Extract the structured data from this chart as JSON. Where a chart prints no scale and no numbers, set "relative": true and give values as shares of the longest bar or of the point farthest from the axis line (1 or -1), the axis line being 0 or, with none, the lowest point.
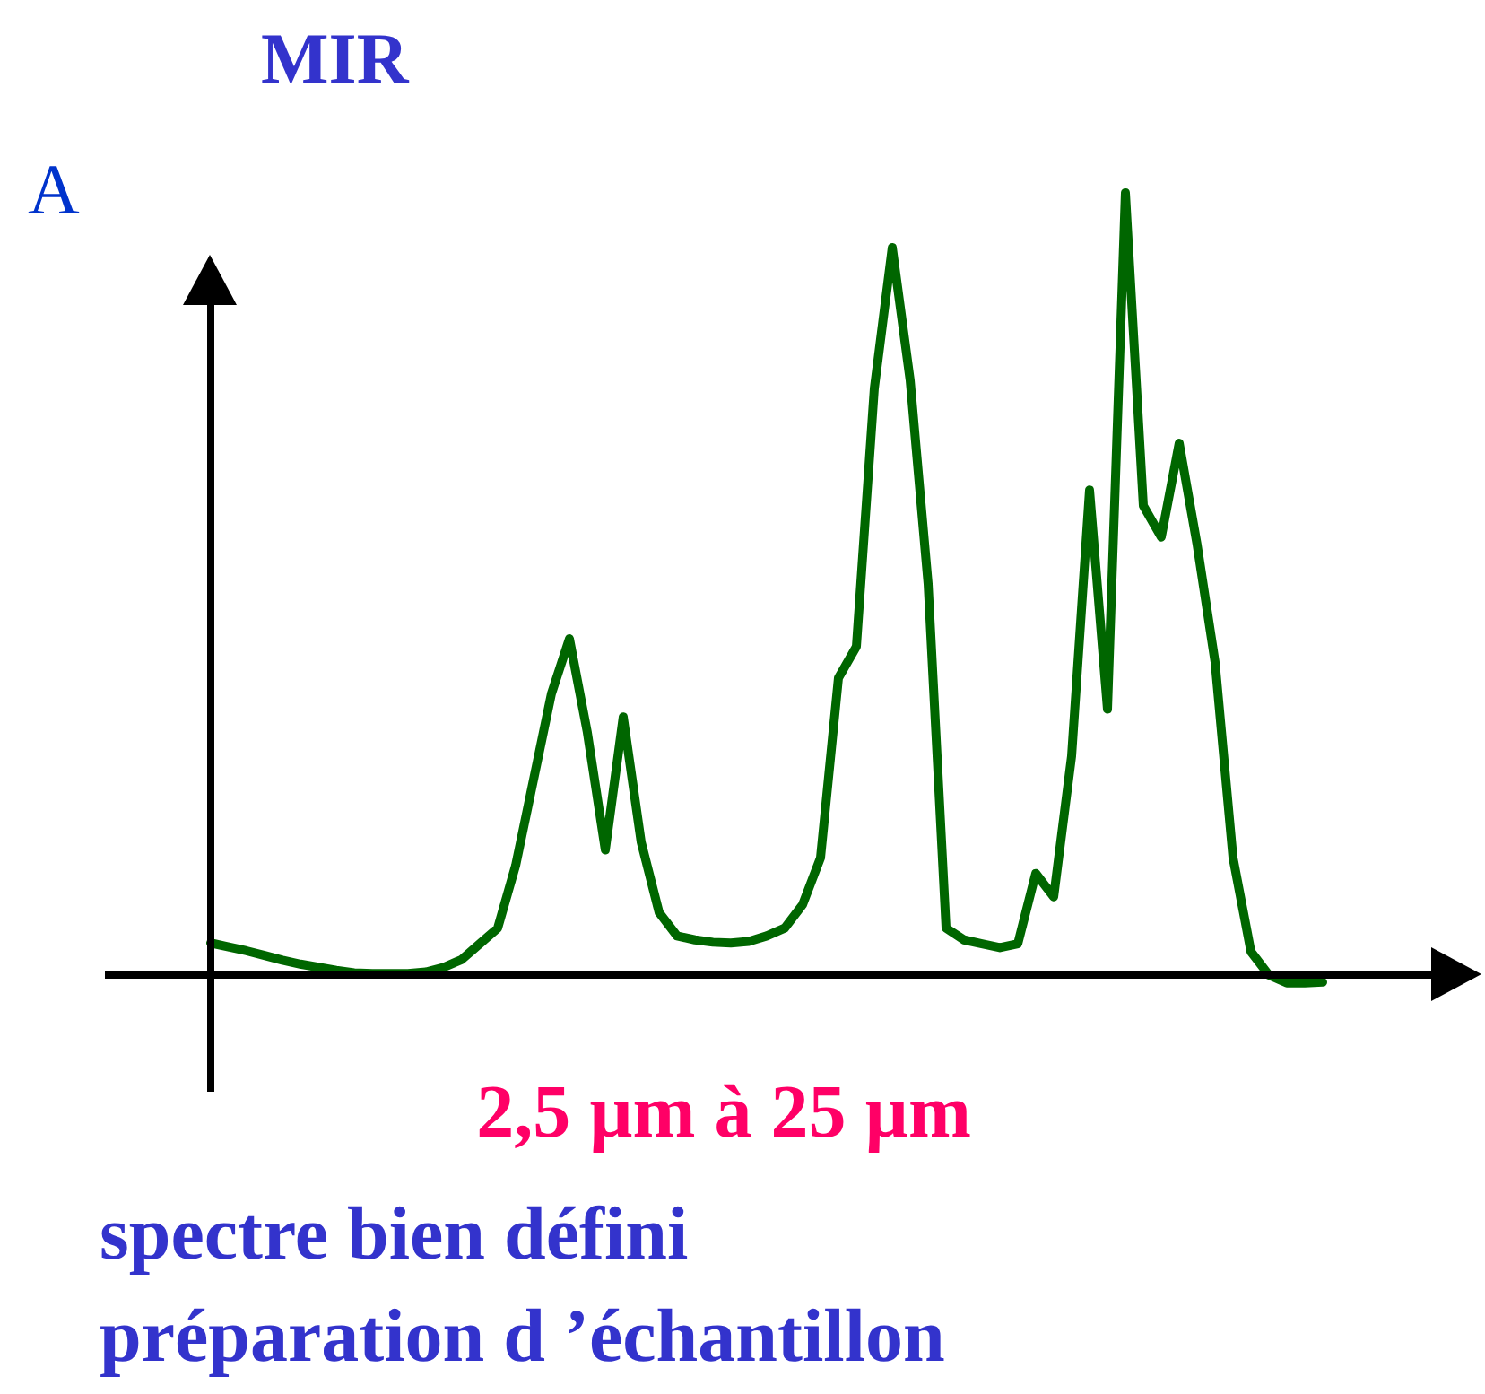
{
  "chart_data": {
    "type": "line",
    "relative": true,
    "title": "MIR",
    "ylabel": "A",
    "xlabel": "2,5 µm à 25 µm",
    "annotations": [
      "spectre bien défini",
      "préparation d ’échantillon"
    ],
    "categories": [
      null,
      null,
      null,
      null,
      null,
      null,
      null,
      null,
      null,
      null,
      null,
      null,
      null,
      null,
      null,
      null,
      null,
      null,
      null,
      null,
      null,
      null,
      null,
      null,
      null,
      null,
      null,
      null,
      null,
      null,
      null,
      null,
      null,
      null,
      null,
      null,
      null,
      null,
      null,
      null,
      null,
      null,
      null,
      null,
      null,
      null,
      null,
      null,
      null,
      null,
      null,
      null,
      null,
      null,
      null,
      null,
      null,
      null,
      null,
      null,
      null,
      null,
      null
    ],
    "series": [
      {
        "color": "#006600",
        "values": [
          0.041,
          0.036,
          0.031,
          0.025,
          0.019,
          0.014,
          0.01,
          0.006,
          0.003,
          0.002,
          0.002,
          0.002,
          0.004,
          0.01,
          0.02,
          0.04,
          0.06,
          0.14,
          0.25,
          0.36,
          0.43,
          0.31,
          0.16,
          0.33,
          0.17,
          0.08,
          0.05,
          0.045,
          0.042,
          0.041,
          0.043,
          0.05,
          0.06,
          0.09,
          0.15,
          0.38,
          0.42,
          0.75,
          0.93,
          0.76,
          0.5,
          0.06,
          0.045,
          0.04,
          0.035,
          0.04,
          0.13,
          0.1,
          0.28,
          0.62,
          0.34,
          1,
          0.6,
          0.56,
          0.68,
          0.55,
          0.4,
          0.15,
          0.03,
          0,
          -0.01,
          -0.01,
          -0.009
        ]
      }
    ]
  }
}
